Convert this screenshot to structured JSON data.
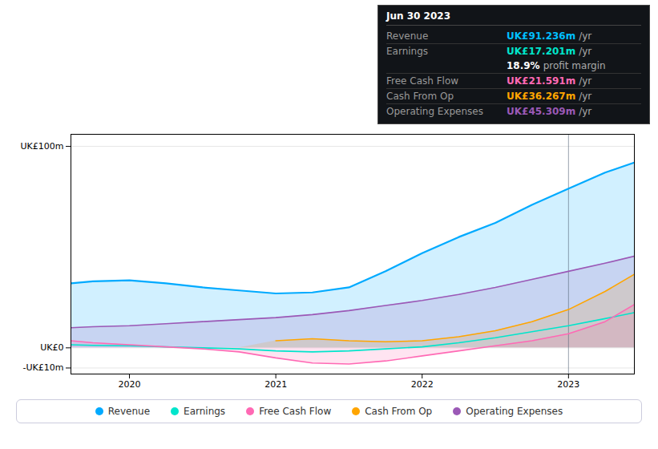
{
  "chart_data": {
    "type": "area",
    "x": [
      2019.6,
      2019.75,
      2020.0,
      2020.25,
      2020.5,
      2020.75,
      2021.0,
      2021.25,
      2021.5,
      2021.75,
      2022.0,
      2022.25,
      2022.5,
      2022.75,
      2023.0,
      2023.25,
      2023.45
    ],
    "xlim": [
      2019.6,
      2023.45
    ],
    "xticks": [
      2020,
      2021,
      2022,
      2023
    ],
    "ylim": [
      -13,
      106
    ],
    "yticks": [
      {
        "value": -10,
        "label": "-UK£10m"
      },
      {
        "value": 0,
        "label": "UK£0"
      },
      {
        "value": 100,
        "label": "UK£100m"
      }
    ],
    "grid": true,
    "legend": "bottom",
    "series": [
      {
        "name": "Revenue",
        "color": "#00aaff",
        "type": "area",
        "values": [
          32,
          33,
          33.5,
          32,
          30,
          28.5,
          27,
          27.5,
          30,
          38,
          47,
          55,
          62,
          71,
          79,
          87,
          92
        ]
      },
      {
        "name": "Earnings",
        "color": "#00e5cc",
        "type": "line",
        "values": [
          1.5,
          1.2,
          1.0,
          0.5,
          0.0,
          -0.5,
          -1.5,
          -2.0,
          -1.5,
          -0.5,
          0.5,
          2.5,
          5.0,
          8.0,
          11.0,
          14.5,
          17.5
        ]
      },
      {
        "name": "Free Cash Flow",
        "color": "#ff69b4",
        "type": "area",
        "values": [
          3.5,
          2.5,
          1.5,
          0.5,
          -0.5,
          -2.0,
          -5.0,
          -7.5,
          -8.0,
          -6.5,
          -4.0,
          -1.5,
          1.0,
          3.5,
          7.0,
          13.0,
          21.5
        ]
      },
      {
        "name": "Cash From Op",
        "color": "#ffa500",
        "type": "area",
        "values": [
          null,
          null,
          null,
          null,
          null,
          null,
          3.5,
          4.5,
          3.5,
          3.0,
          3.5,
          5.5,
          8.5,
          13.0,
          19.0,
          28.0,
          36.5
        ]
      },
      {
        "name": "Operating Expenses",
        "color": "#9b59b6",
        "type": "area",
        "values": [
          10.0,
          10.5,
          11.0,
          12.0,
          13.0,
          14.0,
          15.0,
          16.5,
          18.5,
          21.0,
          23.5,
          26.5,
          30.0,
          34.0,
          38.0,
          42.0,
          45.5
        ]
      }
    ],
    "vline_x": 2023.0,
    "info_box": {
      "title": "Jun 30 2023",
      "rows": [
        {
          "label": "Revenue",
          "value": "UK£91.236m",
          "unit": "/yr",
          "color": "#00bfff"
        },
        {
          "label": "Earnings",
          "value": "UK£17.201m",
          "unit": "/yr",
          "color": "#00e5cc"
        },
        {
          "value": "18.9%",
          "unit": "profit margin",
          "color": "#ffffff"
        },
        {
          "label": "Free Cash Flow",
          "value": "UK£21.591m",
          "unit": "/yr",
          "color": "#ff69b4"
        },
        {
          "label": "Cash From Op",
          "value": "UK£36.267m",
          "unit": "/yr",
          "color": "#ffa500"
        },
        {
          "label": "Operating Expenses",
          "value": "UK£45.309m",
          "unit": "/yr",
          "color": "#9b59b6"
        }
      ]
    }
  }
}
